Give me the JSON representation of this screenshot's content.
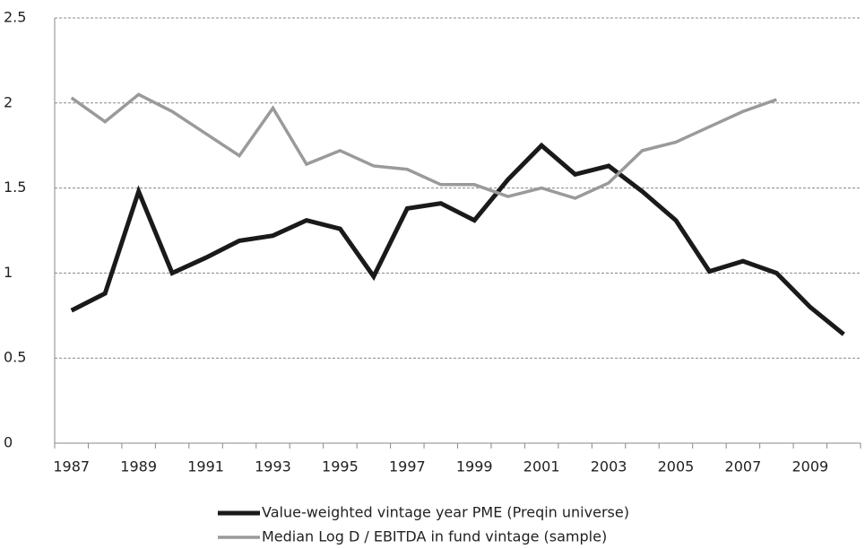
{
  "chart_data": {
    "type": "line",
    "categories": [
      "1987",
      null,
      "1989",
      null,
      "1991",
      null,
      "1993",
      null,
      "1995",
      null,
      "1997",
      null,
      "1999",
      null,
      "2001",
      null,
      "2003",
      null,
      "2005",
      null,
      "2007",
      null,
      "2009",
      null
    ],
    "series": [
      {
        "name": "Value-weighted vintage year PME (Preqin universe)",
        "color": "#1a1a1a",
        "width": 5,
        "values": [
          0.78,
          0.88,
          1.48,
          1.0,
          1.09,
          1.19,
          1.22,
          1.31,
          1.26,
          0.98,
          1.38,
          1.41,
          1.31,
          1.55,
          1.75,
          1.58,
          1.63,
          1.48,
          1.31,
          1.01,
          1.07,
          1.0,
          0.8,
          0.64
        ]
      },
      {
        "name": "Median Log D / EBITDA in fund vintage (sample)",
        "color": "#9a9a9a",
        "width": 3.5,
        "values": [
          2.03,
          1.89,
          2.05,
          1.95,
          1.82,
          1.69,
          1.97,
          1.64,
          1.72,
          1.63,
          1.61,
          1.52,
          1.52,
          1.45,
          1.5,
          1.44,
          1.53,
          1.72,
          1.77,
          1.86,
          1.95,
          2.02,
          null,
          null
        ]
      }
    ],
    "ylim": [
      0,
      2.5
    ],
    "yticks": [
      0,
      0.5,
      1,
      1.5,
      2,
      2.5
    ],
    "grid": true
  }
}
